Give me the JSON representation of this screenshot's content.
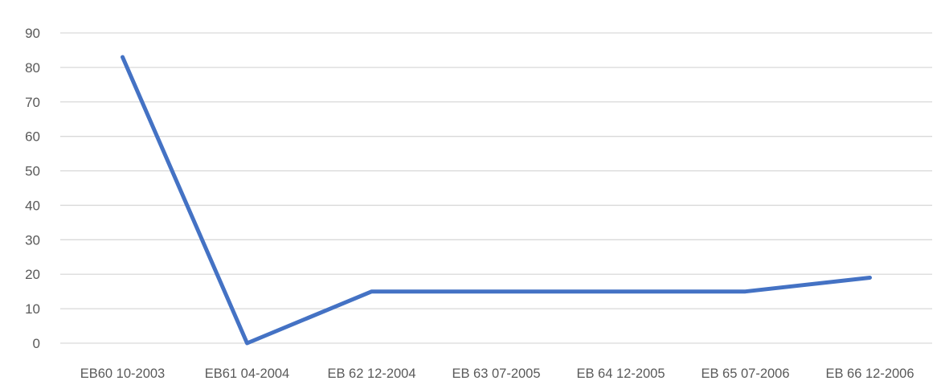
{
  "chart_data": {
    "type": "line",
    "title": "",
    "xlabel": "",
    "ylabel": "",
    "categories": [
      "EB60 10-2003",
      "EB61 04-2004",
      "EB 62 12-2004",
      "EB 63 07-2005",
      "EB 64 12-2005",
      "EB 65 07-2006",
      "EB 66 12-2006"
    ],
    "series": [
      {
        "values": [
          83,
          0,
          15,
          15,
          15,
          15,
          19
        ],
        "color": "#4472C4"
      }
    ],
    "ylim": [
      0,
      90
    ],
    "yticks": [
      "0",
      "10",
      "20",
      "30",
      "40",
      "50",
      "60",
      "70",
      "80",
      "90"
    ],
    "grid": true,
    "legend": "none",
    "colors": {
      "gridline": "#d9d9d9",
      "text": "#595959",
      "line": "#4472C4"
    }
  }
}
